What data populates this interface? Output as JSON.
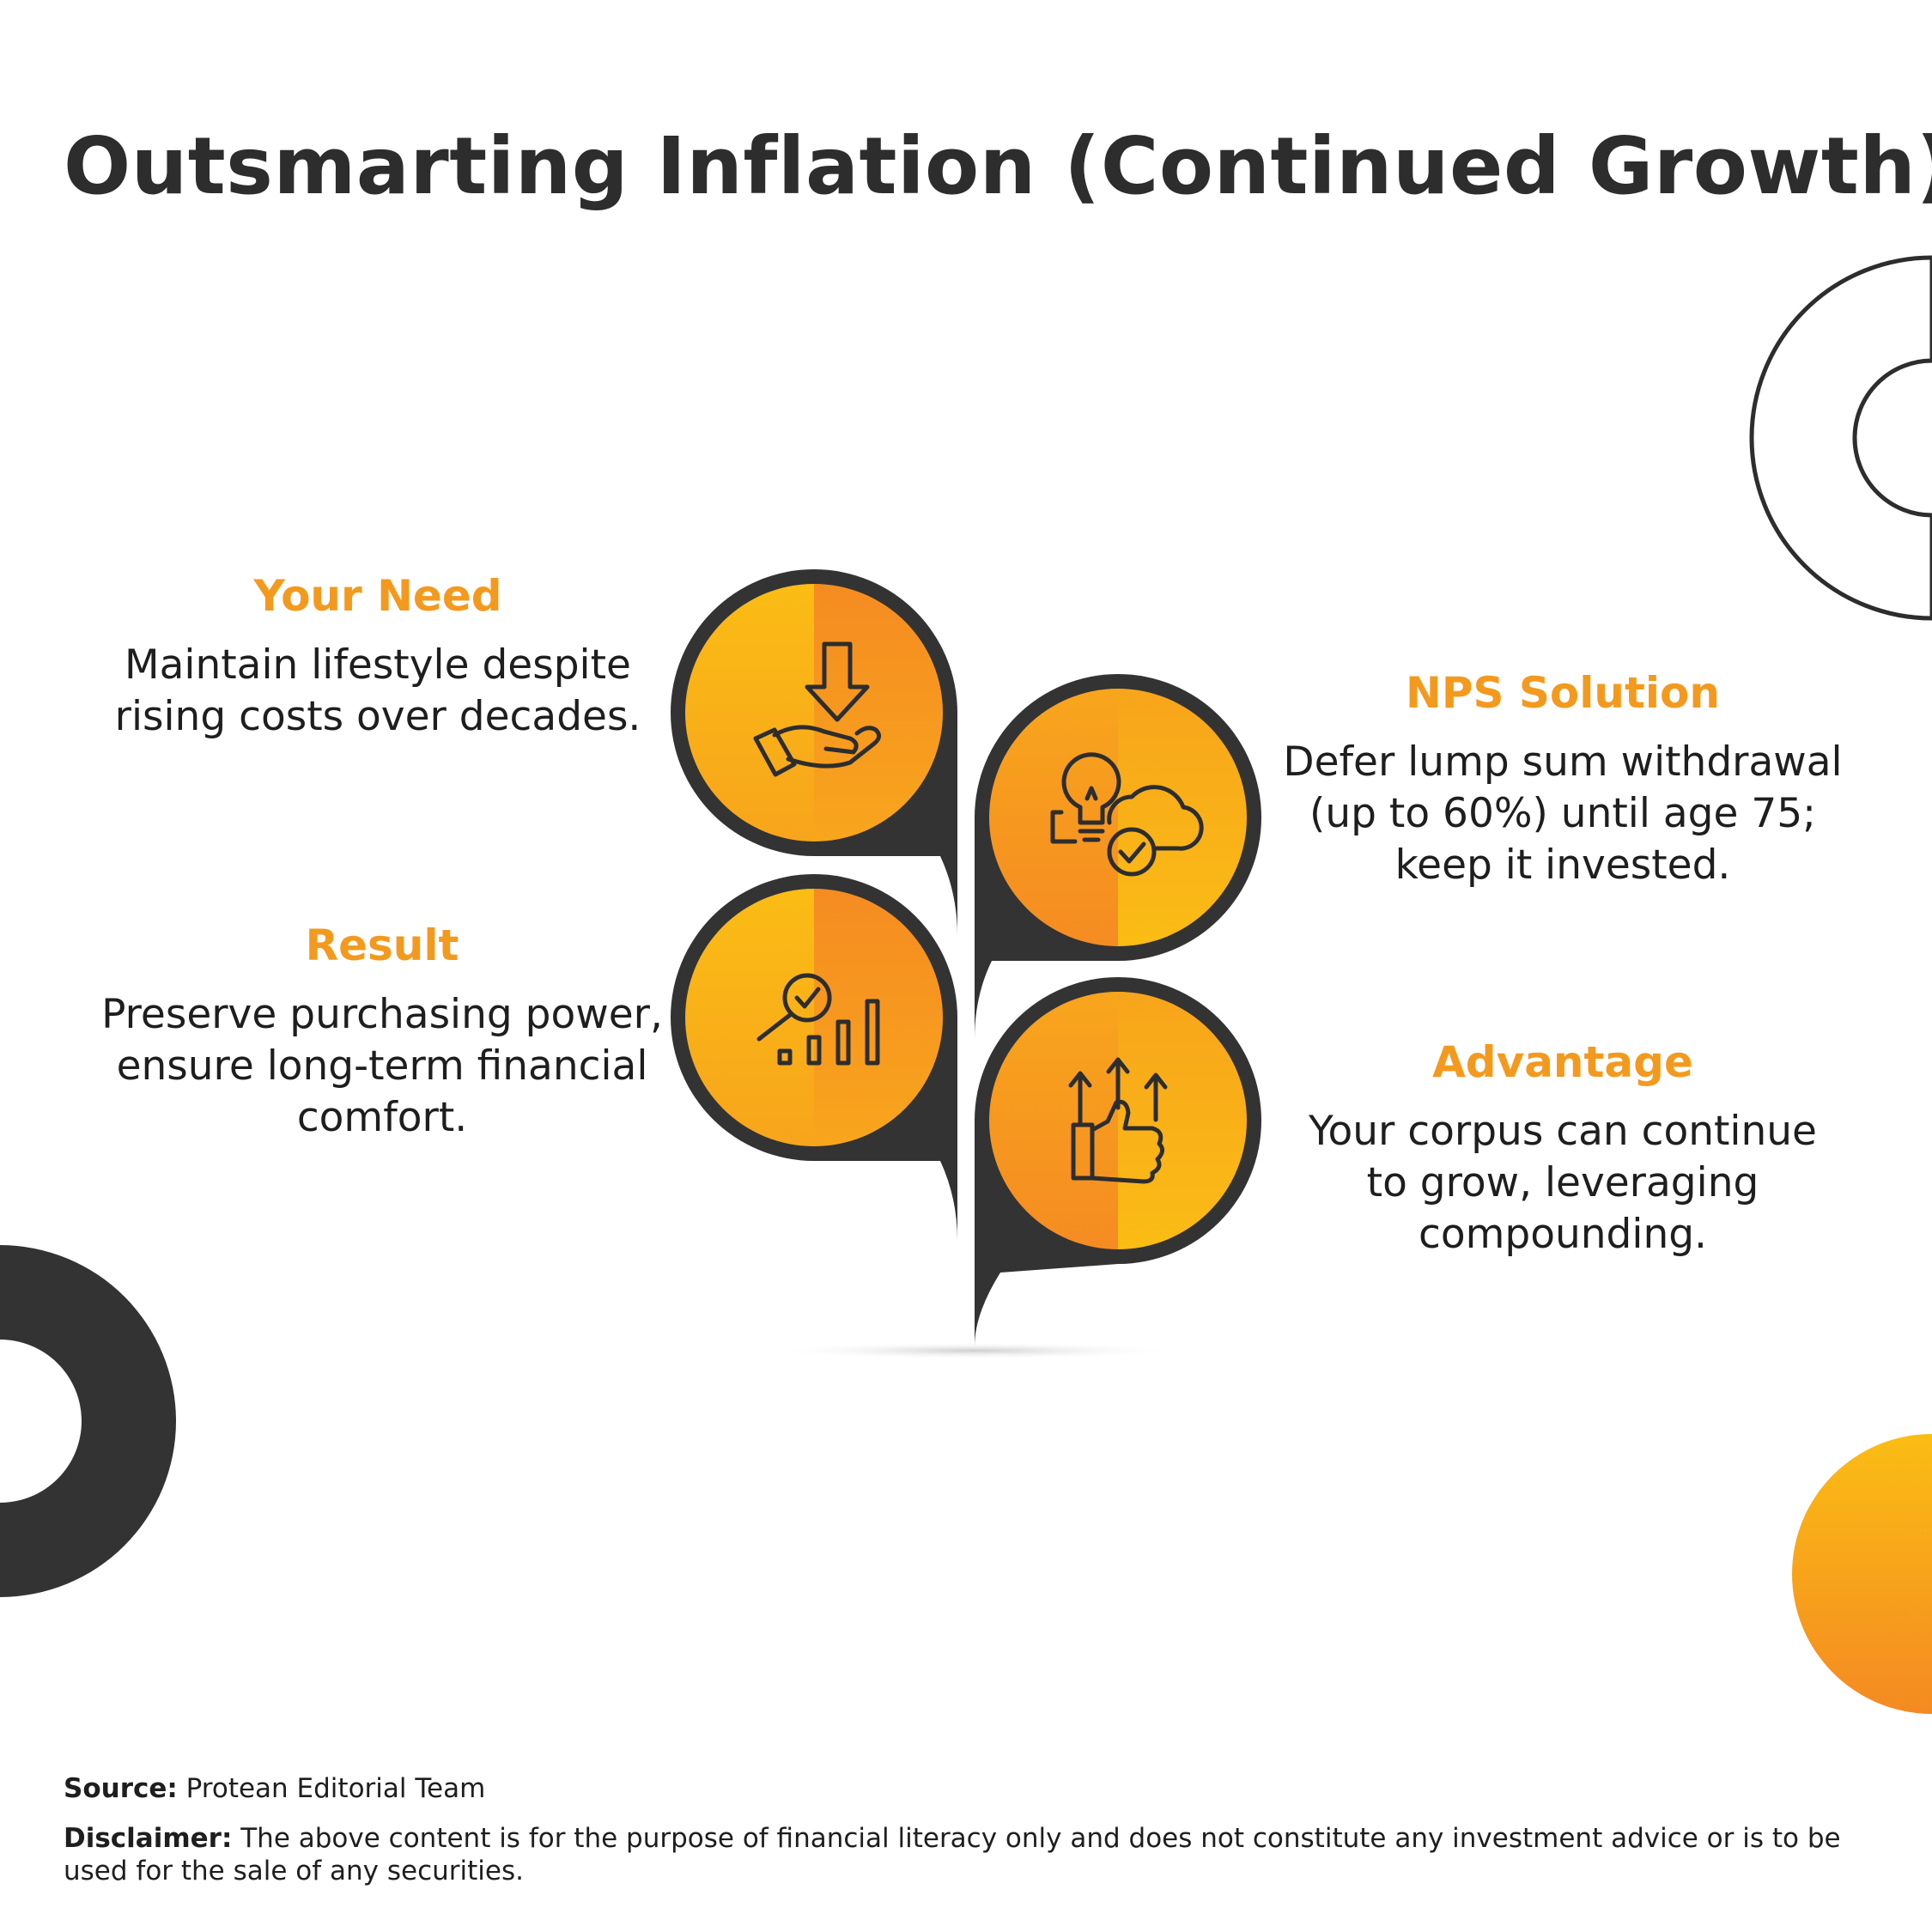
{
  "title": "Outsmarting Inflation (Continued Growth)",
  "colors": {
    "accent_orange": "#f39a1e",
    "accent_yellow": "#fbbd14",
    "dark": "#333333"
  },
  "blocks": {
    "your_need": {
      "heading": "Your Need",
      "lines": [
        "Maintain lifestyle despite",
        "rising costs over decades."
      ],
      "icon": "hand-download-icon"
    },
    "nps_solution": {
      "heading": "NPS Solution",
      "lines": [
        "Defer lump sum withdrawal",
        "(up to 60%) until age 75;",
        "keep it invested."
      ],
      "icon": "lightbulb-cloud-check-icon"
    },
    "result": {
      "heading": "Result",
      "lines": [
        "Preserve purchasing power,",
        "ensure long-term financial",
        "comfort."
      ],
      "icon": "magnifier-bar-chart-icon"
    },
    "advantage": {
      "heading": "Advantage",
      "lines": [
        "Your corpus can continue",
        "to grow, leveraging",
        "compounding."
      ],
      "icon": "thumbs-up-arrows-icon"
    }
  },
  "footer": {
    "source_label": "Source:",
    "source_text": "Protean Editorial Team",
    "disclaimer_label": "Disclaimer:",
    "disclaimer_text": "The above content is for the purpose of financial literacy only and does not constitute any investment advice or is to be used for the sale of any securities."
  }
}
